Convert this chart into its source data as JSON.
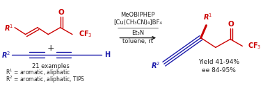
{
  "bg_color": "#ffffff",
  "red_color": "#cc0000",
  "blue_color": "#1a1aaa",
  "black_color": "#222222",
  "figsize": [
    3.78,
    1.24
  ],
  "dpi": 100,
  "cond_text1": "MeOBIPHEP",
  "cond_text2": "[Cu(CH₃CN)₄]BF₄",
  "cond_text3": "Et₃N",
  "cond_text4": "toluene, rt",
  "examples_text": "21 examples",
  "footnote1_text": "R¹ = aromatic, aliphatic",
  "footnote2_text": "R² = aromatic, aliphatic, TIPS",
  "yield_text": "Yield 41-94%",
  "ee_text": "ee 84-95%"
}
